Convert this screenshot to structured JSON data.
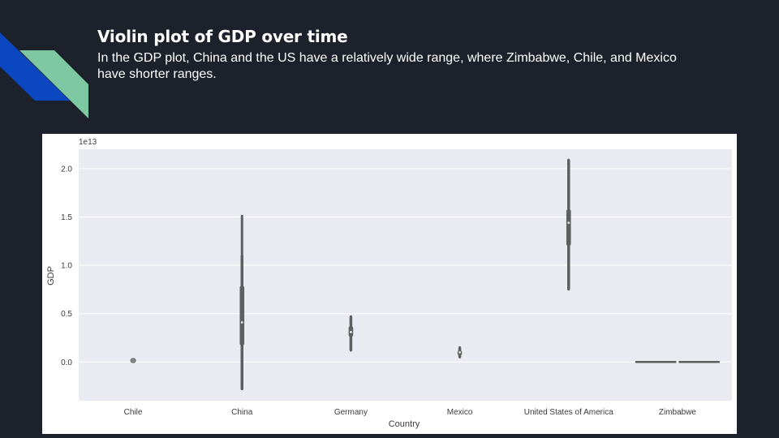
{
  "slide": {
    "title": "Violin plot of GDP over time",
    "subtitle": "In the GDP plot, China and the US have a relatively wide range, where Zimbabwe, Chile, and Mexico have shorter ranges."
  },
  "colors": {
    "background": "#1c212b",
    "accent_blue": "#0b47c0",
    "accent_green": "#7dc7a2",
    "plot_bg": "#eaeaf2",
    "violin": "#5f5f5f"
  },
  "chart_data": {
    "type": "violin",
    "title": "",
    "xlabel": "Country",
    "ylabel": "GDP",
    "y_scale_label": "1e13",
    "ylim": [
      -0.4,
      2.2
    ],
    "yticks": [
      0.0,
      0.5,
      1.0,
      1.5,
      2.0
    ],
    "ytick_labels": [
      "0.0",
      "0.5",
      "1.0",
      "1.5",
      "2.0"
    ],
    "grid": true,
    "categories": [
      "Chile",
      "China",
      "Germany",
      "Mexico",
      "United States of America",
      "Zimbabwe"
    ],
    "series": [
      {
        "category": "Chile",
        "min": 0.005,
        "q1": 0.01,
        "median": 0.015,
        "q3": 0.02,
        "max": 0.025,
        "whisker_low": 0.008,
        "whisker_high": 0.022
      },
      {
        "category": "China",
        "min": -0.28,
        "q1": 0.17,
        "median": 0.41,
        "q3": 0.79,
        "max": 1.51,
        "whisker_low": -0.28,
        "whisker_high": 1.1
      },
      {
        "category": "Germany",
        "min": 0.12,
        "q1": 0.26,
        "median": 0.31,
        "q3": 0.37,
        "max": 0.47,
        "whisker_low": 0.12,
        "whisker_high": 0.47
      },
      {
        "category": "Mexico",
        "min": 0.05,
        "q1": 0.07,
        "median": 0.1,
        "q3": 0.12,
        "max": 0.15,
        "whisker_low": 0.05,
        "whisker_high": 0.15
      },
      {
        "category": "United States of America",
        "min": 0.75,
        "q1": 1.2,
        "median": 1.44,
        "q3": 1.58,
        "max": 2.09,
        "whisker_low": 0.75,
        "whisker_high": 2.09
      },
      {
        "category": "Zimbabwe",
        "min": -0.01,
        "q1": -0.005,
        "median": 0.0,
        "q3": 0.005,
        "max": 0.01,
        "whisker_low": -0.01,
        "whisker_high": 0.01
      }
    ]
  }
}
